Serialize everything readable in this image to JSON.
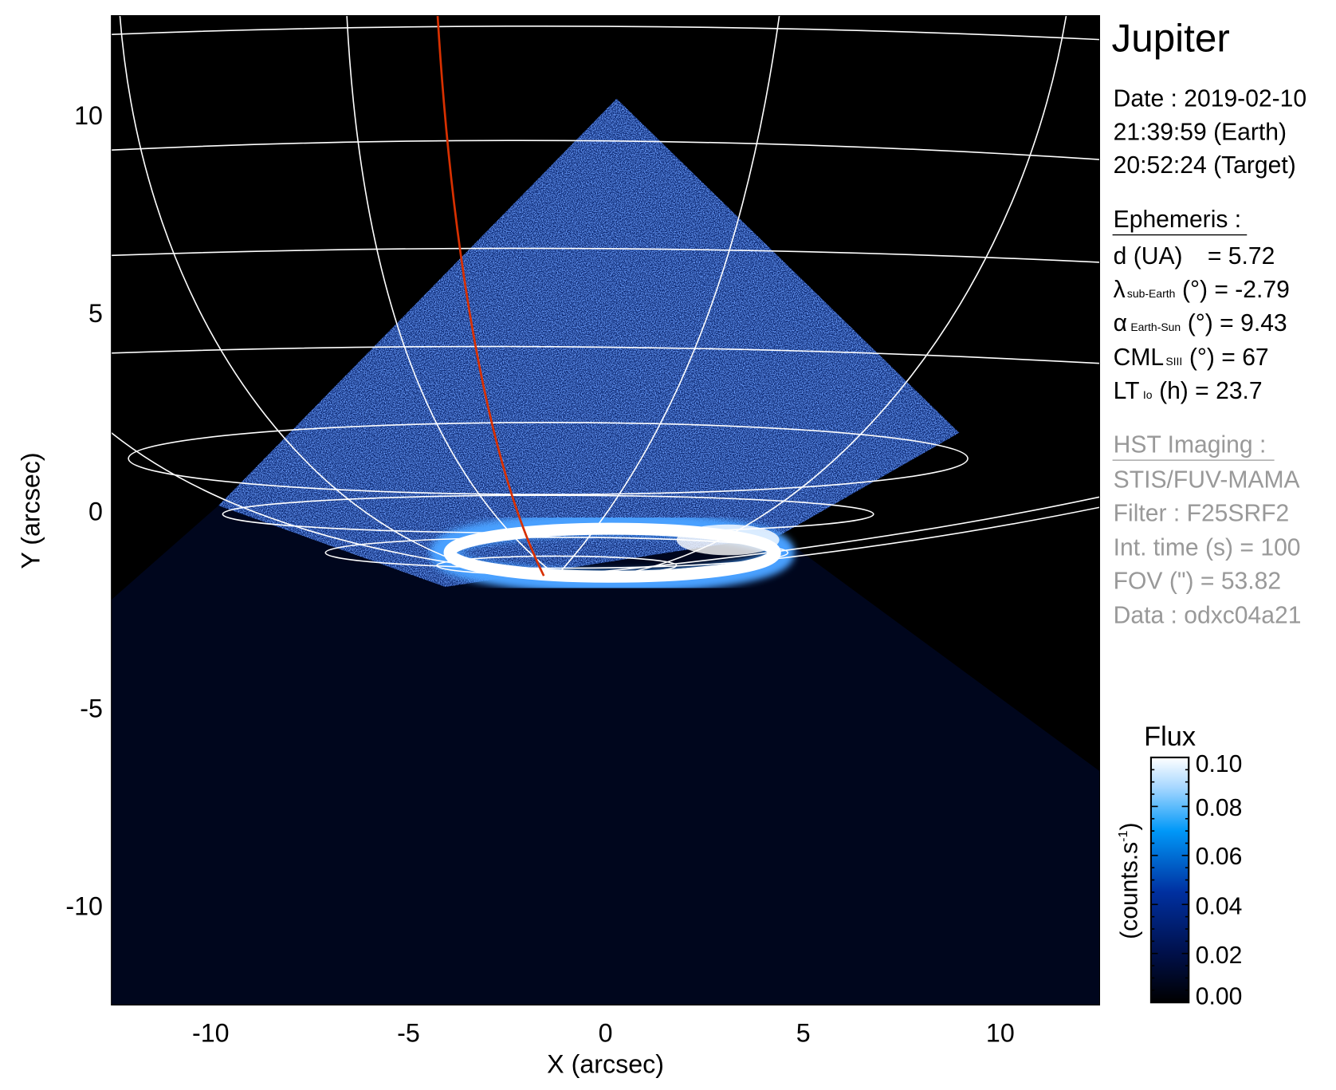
{
  "chart_data": {
    "type": "heatmap",
    "title": "Jupiter",
    "xlabel": "X (arcsec)",
    "ylabel": "Y (arcsec)",
    "xlim": [
      -12.5,
      12.5
    ],
    "ylim": [
      -12.5,
      12.5
    ],
    "x_ticks": [
      "-10",
      "-5",
      "0",
      "5",
      "10"
    ],
    "y_ticks": [
      "10",
      "5",
      "0",
      "-5",
      "-10"
    ],
    "grid": "planetographic lat/lon overlay",
    "colorbar": {
      "title": "Flux",
      "label": "(counts.s",
      "label_sup": "-1",
      "label_close": ")",
      "range": [
        0.0,
        0.1
      ],
      "ticks": [
        "0.10",
        "0.08",
        "0.06",
        "0.04",
        "0.02",
        "0.00"
      ],
      "colormap": [
        "#000000",
        "#00104a",
        "#0038a8",
        "#0090f0",
        "#a8d8ff",
        "#ffffff"
      ]
    },
    "colors": {
      "background": "#000000",
      "grid": "#ffffff",
      "trace": "#d83000"
    }
  },
  "info": {
    "target": "Jupiter",
    "date": "Date : 2019-02-10",
    "time_earth": "21:39:59 (Earth)",
    "time_target": "20:52:24 (Target)",
    "ephemeris_title": "Ephemeris :",
    "d": {
      "label": "d (UA)",
      "value": "= 5.72"
    },
    "lat": {
      "symbol": "λ",
      "sub": "sub-Earth",
      "rest": "(°) = -2.79"
    },
    "phase": {
      "symbol": "α",
      "sub": "Earth-Sun",
      "rest": "(°) = 9.43"
    },
    "cml": {
      "symbol": "CML",
      "sub": "SIII",
      "rest": "(°) = 67"
    },
    "lt": {
      "symbol": "LT",
      "sub": "Io",
      "rest": "(h) = 23.7"
    },
    "hst_title": "HST Imaging :",
    "instrument": "STIS/FUV-MAMA",
    "filter": "Filter : F25SRF2",
    "int_time": "Int. time (s) = 100",
    "fov": "FOV (\") = 53.82",
    "data_id": "Data : odxc04a21"
  }
}
